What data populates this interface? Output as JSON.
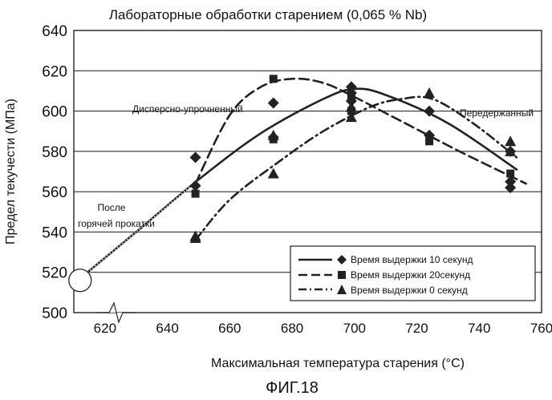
{
  "chart_data": {
    "type": "scatter",
    "title": "Лабораторные обработки старением (0,065 % Nb)",
    "xlabel": "Максимальная температура старения (°С)",
    "ylabel": "Предел текучести (МПа)",
    "caption": "ФИГ.18",
    "xlim": [
      610,
      760
    ],
    "ylim": [
      500,
      640
    ],
    "x_ticks": [
      "620",
      "640",
      "660",
      "680",
      "700",
      "720",
      "740",
      "760"
    ],
    "y_ticks": [
      "500",
      "520",
      "540",
      "560",
      "580",
      "600",
      "620",
      "640"
    ],
    "grid": "horizontal",
    "legend_position": "bottom-right",
    "annotations": {
      "as_rolled_line1": "После",
      "as_rolled_line2": "горячей прокатки",
      "precipitation_hardened": "Дисперсно-упрочненный",
      "overaged": "Передержанный"
    },
    "as_rolled_point": {
      "x": 612,
      "y": 516
    },
    "series": [
      {
        "name": "Время выдержки 10 секунд",
        "marker": "diamond",
        "line": "solid",
        "points": [
          {
            "x": 649,
            "y": 577
          },
          {
            "x": 649,
            "y": 563
          },
          {
            "x": 674,
            "y": 604
          },
          {
            "x": 674,
            "y": 587
          },
          {
            "x": 699,
            "y": 612
          },
          {
            "x": 699,
            "y": 609
          },
          {
            "x": 699,
            "y": 605
          },
          {
            "x": 724,
            "y": 600
          },
          {
            "x": 724,
            "y": 588
          },
          {
            "x": 750,
            "y": 580
          },
          {
            "x": 750,
            "y": 565
          },
          {
            "x": 750,
            "y": 562
          }
        ],
        "curve": [
          {
            "x": 612,
            "y": 517
          },
          {
            "x": 630,
            "y": 540
          },
          {
            "x": 650,
            "y": 566
          },
          {
            "x": 670,
            "y": 589
          },
          {
            "x": 690,
            "y": 606
          },
          {
            "x": 700,
            "y": 611
          },
          {
            "x": 710,
            "y": 608
          },
          {
            "x": 730,
            "y": 594
          },
          {
            "x": 752,
            "y": 571
          }
        ]
      },
      {
        "name": "Время выдержки 20секунд",
        "marker": "square",
        "line": "dashed",
        "points": [
          {
            "x": 649,
            "y": 559
          },
          {
            "x": 674,
            "y": 616
          },
          {
            "x": 674,
            "y": 586
          },
          {
            "x": 699,
            "y": 607
          },
          {
            "x": 699,
            "y": 600
          },
          {
            "x": 724,
            "y": 585
          },
          {
            "x": 750,
            "y": 569
          }
        ],
        "curve": [
          {
            "x": 649,
            "y": 564
          },
          {
            "x": 660,
            "y": 598
          },
          {
            "x": 670,
            "y": 612
          },
          {
            "x": 680,
            "y": 616
          },
          {
            "x": 690,
            "y": 614
          },
          {
            "x": 700,
            "y": 607
          },
          {
            "x": 710,
            "y": 599
          },
          {
            "x": 720,
            "y": 591
          },
          {
            "x": 735,
            "y": 579
          },
          {
            "x": 755,
            "y": 564
          }
        ]
      },
      {
        "name": "Время выдержки 0 секунд",
        "marker": "triangle",
        "line": "dashdot",
        "points": [
          {
            "x": 649,
            "y": 538
          },
          {
            "x": 649,
            "y": 537
          },
          {
            "x": 674,
            "y": 569
          },
          {
            "x": 674,
            "y": 588
          },
          {
            "x": 699,
            "y": 602
          },
          {
            "x": 699,
            "y": 597
          },
          {
            "x": 724,
            "y": 609
          },
          {
            "x": 750,
            "y": 585
          },
          {
            "x": 750,
            "y": 580
          }
        ],
        "curve": [
          {
            "x": 649,
            "y": 536
          },
          {
            "x": 660,
            "y": 556
          },
          {
            "x": 675,
            "y": 574
          },
          {
            "x": 690,
            "y": 590
          },
          {
            "x": 705,
            "y": 602
          },
          {
            "x": 715,
            "y": 606
          },
          {
            "x": 725,
            "y": 606
          },
          {
            "x": 738,
            "y": 594
          },
          {
            "x": 752,
            "y": 577
          }
        ]
      }
    ]
  }
}
